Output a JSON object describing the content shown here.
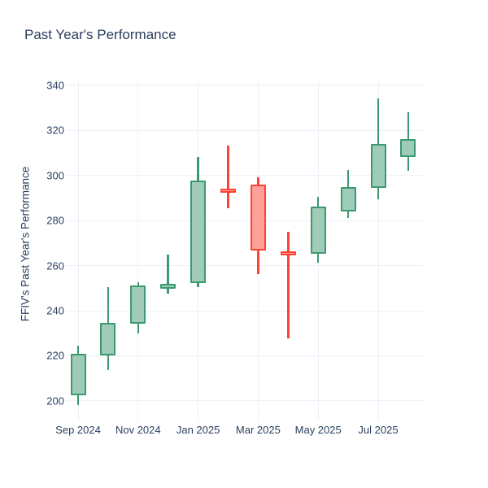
{
  "colors": {
    "background": "#ffffff",
    "text": "#2a3f5f",
    "grid": "#ebf0f8",
    "up_line": "#3d9970",
    "up_fill": "#9eccb8",
    "down_line": "#ff4136",
    "down_fill": "#ffa09b"
  },
  "chart_data": {
    "type": "candlestick",
    "title": "Past Year's Performance",
    "xlabel": "",
    "ylabel": "FFIV's Past Year's Performance",
    "ylim": [
      191.3,
      341.8
    ],
    "grid": true,
    "legend": "none",
    "y_ticks": [
      200,
      220,
      240,
      260,
      280,
      300,
      320,
      340
    ],
    "x_ticks": [
      {
        "month_index": 0,
        "label": "Sep 2024"
      },
      {
        "month_index": 2,
        "label": "Nov 2024"
      },
      {
        "month_index": 4,
        "label": "Jan 2025"
      },
      {
        "month_index": 6,
        "label": "Mar 2025"
      },
      {
        "month_index": 8,
        "label": "May 2025"
      },
      {
        "month_index": 10,
        "label": "Jul 2025"
      }
    ],
    "series": [
      {
        "x": "Sep 2024",
        "open": 202.5,
        "high": 224.5,
        "low": 198.0,
        "close": 221.0,
        "direction": "up"
      },
      {
        "x": "Oct 2024",
        "open": 220.3,
        "high": 250.5,
        "low": 213.7,
        "close": 234.5,
        "direction": "up"
      },
      {
        "x": "Nov 2024",
        "open": 234.3,
        "high": 252.8,
        "low": 229.9,
        "close": 251.2,
        "direction": "up"
      },
      {
        "x": "Dec 2024",
        "open": 249.8,
        "high": 265.0,
        "low": 247.6,
        "close": 251.8,
        "direction": "up"
      },
      {
        "x": "Jan 2025",
        "open": 252.4,
        "high": 308.3,
        "low": 250.4,
        "close": 297.9,
        "direction": "up"
      },
      {
        "x": "Feb 2025",
        "open": 294.3,
        "high": 313.2,
        "low": 285.5,
        "close": 292.5,
        "direction": "down"
      },
      {
        "x": "Mar 2025",
        "open": 295.9,
        "high": 299.3,
        "low": 256.4,
        "close": 266.6,
        "direction": "down"
      },
      {
        "x": "Apr 2025",
        "open": 266.3,
        "high": 275.0,
        "low": 227.9,
        "close": 264.8,
        "direction": "down"
      },
      {
        "x": "May 2025",
        "open": 265.4,
        "high": 290.5,
        "low": 261.4,
        "close": 286.1,
        "direction": "up"
      },
      {
        "x": "Jun 2025",
        "open": 284.1,
        "high": 302.4,
        "low": 281.1,
        "close": 294.9,
        "direction": "up"
      },
      {
        "x": "Jul 2025",
        "open": 294.6,
        "high": 334.3,
        "low": 289.5,
        "close": 314.1,
        "direction": "up"
      },
      {
        "x": "Aug 2025",
        "open": 308.4,
        "high": 328.2,
        "low": 302.1,
        "close": 316.3,
        "direction": "up"
      }
    ]
  }
}
